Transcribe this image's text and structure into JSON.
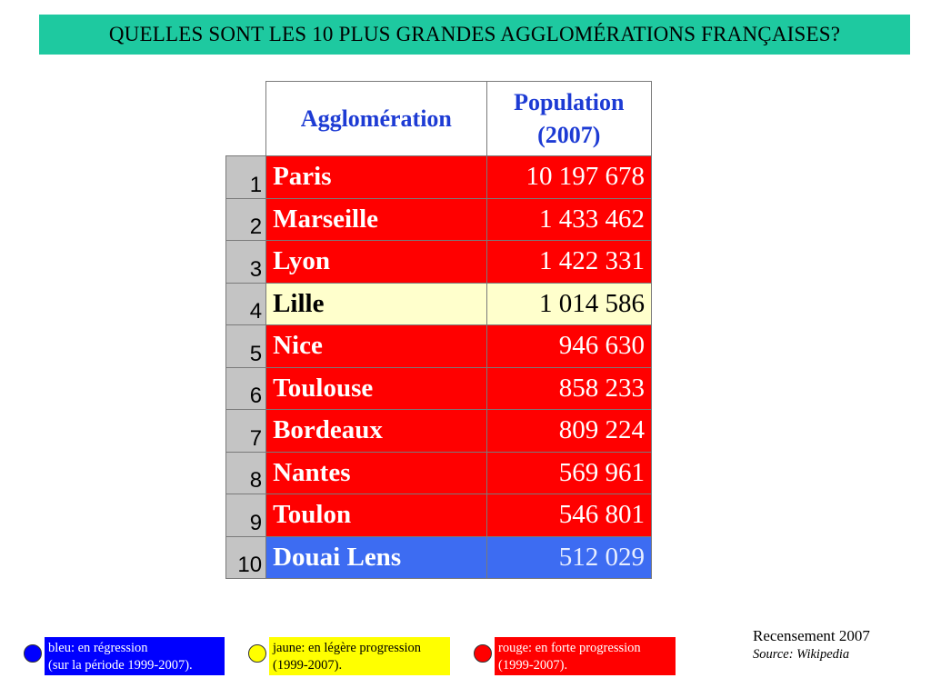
{
  "title": "QUELLES SONT LES 10 PLUS GRANDES AGGLOMÉRATIONS FRANÇAISES?",
  "table": {
    "header_name": "Agglomération",
    "header_pop_line1": "Population",
    "header_pop_line2": "(2007)",
    "rows": [
      {
        "rank": "1",
        "name": "Paris",
        "population": "10 197 678",
        "status": "red"
      },
      {
        "rank": "2",
        "name": "Marseille",
        "population": "1 433 462",
        "status": "red"
      },
      {
        "rank": "3",
        "name": "Lyon",
        "population": "1 422 331",
        "status": "red"
      },
      {
        "rank": "4",
        "name": "Lille",
        "population": "1 014 586",
        "status": "yellow"
      },
      {
        "rank": "5",
        "name": "Nice",
        "population": "946 630",
        "status": "red"
      },
      {
        "rank": "6",
        "name": "Toulouse",
        "population": "858 233",
        "status": "red"
      },
      {
        "rank": "7",
        "name": "Bordeaux",
        "population": "809 224",
        "status": "red"
      },
      {
        "rank": "8",
        "name": "Nantes",
        "population": "569 961",
        "status": "red"
      },
      {
        "rank": "9",
        "name": "Toulon",
        "population": "546 801",
        "status": "red"
      },
      {
        "rank": "10",
        "name": "Douai Lens",
        "population": "512 029",
        "status": "blue"
      }
    ]
  },
  "legend": [
    {
      "line1": "bleu: en régression",
      "line2": "(sur la période 1999-2007).",
      "color": "#0000ff",
      "text_color": "#ffffff"
    },
    {
      "line1": "jaune: en légère progression",
      "line2": "(1999-2007).",
      "color": "#ffff00",
      "text_color": "#000000"
    },
    {
      "line1": "rouge: en forte progression",
      "line2": "(1999-2007).",
      "color": "#ff0000",
      "text_color": "#ffffff"
    }
  ],
  "source": {
    "census": "Recensement 2007",
    "source": "Source: Wikipedia"
  },
  "colors": {
    "banner": "#1ec9a0",
    "red": "#ff0000",
    "yellow": "#ffffcc",
    "blue": "#3d6cf2",
    "header_text": "#1d3bd4"
  }
}
